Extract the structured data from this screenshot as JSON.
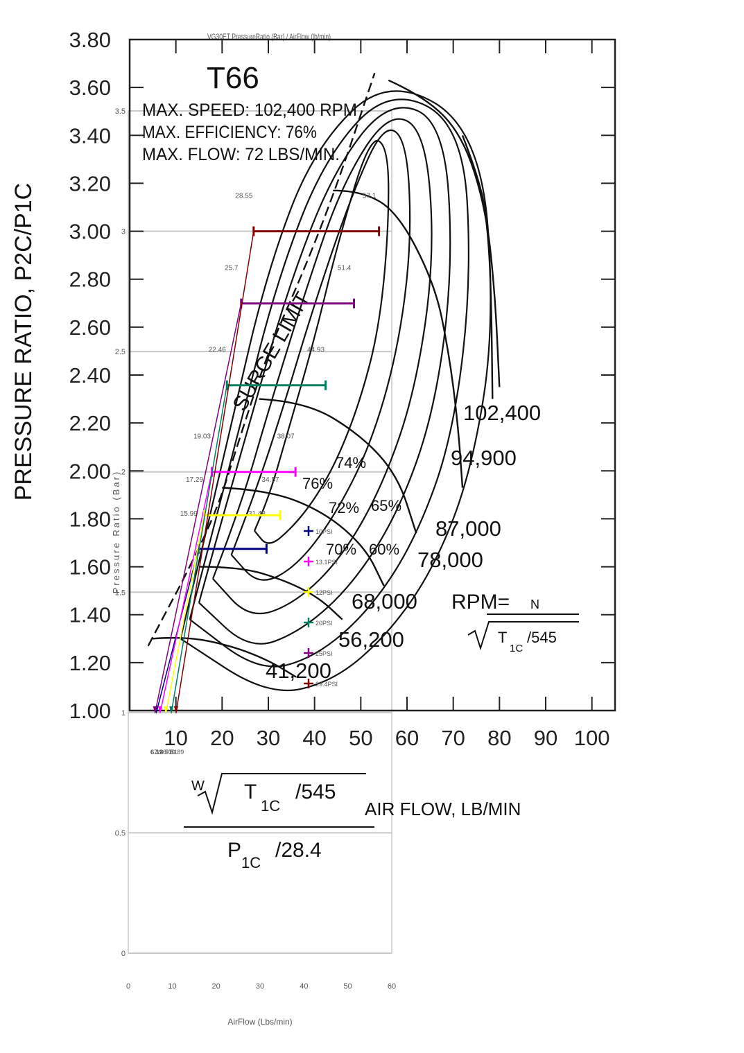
{
  "chart_data": {
    "type": "line",
    "base_map": {
      "model": "T66",
      "specs": [
        "MAX. SPEED: 102,400 RPM",
        "MAX. EFFICIENCY: 76%",
        "MAX. FLOW: 72 LBS/MIN."
      ],
      "ylabel": "PRESSURE RATIO, P2C/P1C",
      "xlabel": "AIR FLOW, LB/MIN",
      "xlabel_formula": {
        "w": "W",
        "t": "T",
        "t_sub": "1C",
        "t_div": "/545",
        "p": "P",
        "p_sub": "1C",
        "p_div": "/28.4"
      },
      "rpm_formula": {
        "prefix": "RPM=",
        "n": "N",
        "t": "T",
        "t_sub": "1C",
        "t_div": "/545"
      },
      "surge_label": "SURGE LIMIT",
      "x_range": [
        0,
        105
      ],
      "y_range": [
        1.0,
        3.8
      ],
      "x_ticks": [
        "10",
        "20",
        "30",
        "40",
        "50",
        "60",
        "70",
        "80",
        "90",
        "100"
      ],
      "x_tick_values": [
        10,
        20,
        30,
        40,
        50,
        60,
        70,
        80,
        90,
        100
      ],
      "y_ticks": [
        "1.00",
        "1.20",
        "1.40",
        "1.60",
        "1.80",
        "2.00",
        "2.20",
        "2.40",
        "2.60",
        "2.80",
        "3.00",
        "3.20",
        "3.40",
        "3.60",
        "3.80"
      ],
      "y_tick_values": [
        1.0,
        1.2,
        1.4,
        1.6,
        1.8,
        2.0,
        2.2,
        2.4,
        2.6,
        2.8,
        3.0,
        3.2,
        3.4,
        3.6,
        3.8
      ],
      "speed_lines": [
        {
          "label": "41,200",
          "points": [
            [
              5,
              1.3
            ],
            [
              12,
              1.31
            ],
            [
              22,
              1.27
            ],
            [
              30,
              1.21
            ],
            [
              36,
              1.14
            ]
          ]
        },
        {
          "label": "56,200",
          "points": [
            [
              15,
              1.6
            ],
            [
              24,
              1.6
            ],
            [
              34,
              1.54
            ],
            [
              41,
              1.47
            ],
            [
              46,
              1.38
            ]
          ]
        },
        {
          "label": "68,000 RPM",
          "points": [
            [
              20,
              1.93
            ],
            [
              30,
              1.92
            ],
            [
              42,
              1.83
            ],
            [
              51,
              1.68
            ],
            [
              55,
              1.52
            ]
          ]
        },
        {
          "label": "78,000",
          "points": [
            [
              28,
              2.3
            ],
            [
              38,
              2.29
            ],
            [
              50,
              2.15
            ],
            [
              58,
              1.98
            ],
            [
              62,
              1.74
            ]
          ]
        },
        {
          "label": "87,000",
          "points": [
            [
              44,
              3.17
            ],
            [
              50,
              3.17
            ],
            [
              58,
              3.08
            ],
            [
              66,
              2.78
            ],
            [
              69,
              2.5
            ],
            [
              71,
              2.2
            ],
            [
              72,
              1.93
            ]
          ]
        },
        {
          "label": "94,900",
          "points": [
            [
              56,
              3.63
            ],
            [
              64,
              3.56
            ],
            [
              72,
              3.4
            ],
            [
              77,
              3.1
            ],
            [
              79,
              2.75
            ],
            [
              80,
              2.35
            ]
          ]
        },
        {
          "label": "102,400",
          "points": [
            [
              72,
              3.4
            ],
            [
              76,
              3.2
            ],
            [
              77.5,
              3.0
            ],
            [
              78.2,
              2.75
            ],
            [
              78.5,
              2.3
            ]
          ]
        }
      ],
      "surge_line": [
        [
          4,
          1.27
        ],
        [
          7,
          1.38
        ],
        [
          12,
          1.56
        ],
        [
          19,
          1.84
        ],
        [
          24,
          2.15
        ],
        [
          30,
          2.5
        ],
        [
          38,
          2.85
        ],
        [
          45,
          3.2
        ],
        [
          53,
          3.66
        ]
      ],
      "efficiency_islands": [
        {
          "label": "76%",
          "points": [
            [
              27,
              1.75
            ],
            [
              30,
              1.88
            ],
            [
              34,
              2.15
            ],
            [
              40,
              2.55
            ],
            [
              45,
              2.95
            ],
            [
              52,
              3.4
            ],
            [
              56,
              3.35
            ],
            [
              56,
              3.0
            ],
            [
              54,
              2.6
            ],
            [
              50,
              2.3
            ],
            [
              45,
              2.05
            ],
            [
              40,
              1.88
            ],
            [
              35,
              1.76
            ],
            [
              30,
              1.68
            ],
            [
              27,
              1.75
            ]
          ]
        },
        {
          "label": "74%",
          "points": [
            [
              22,
              1.65
            ],
            [
              27,
              1.9
            ],
            [
              33,
              2.25
            ],
            [
              40,
              2.7
            ],
            [
              48,
              3.15
            ],
            [
              55,
              3.45
            ],
            [
              60,
              3.38
            ],
            [
              61,
              2.95
            ],
            [
              58,
              2.5
            ],
            [
              52,
              2.1
            ],
            [
              44,
              1.8
            ],
            [
              36,
              1.6
            ],
            [
              28,
              1.52
            ],
            [
              22,
              1.65
            ]
          ]
        },
        {
          "label": "72%",
          "points": [
            [
              18,
              1.55
            ],
            [
              24,
              1.85
            ],
            [
              30,
              2.25
            ],
            [
              38,
              2.75
            ],
            [
              46,
              3.2
            ],
            [
              56,
              3.5
            ],
            [
              64,
              3.42
            ],
            [
              66,
              2.9
            ],
            [
              62,
              2.35
            ],
            [
              55,
              1.95
            ],
            [
              46,
              1.64
            ],
            [
              36,
              1.45
            ],
            [
              26,
              1.38
            ],
            [
              18,
              1.55
            ]
          ]
        },
        {
          "label": "70%",
          "points": [
            [
              15,
              1.45
            ],
            [
              20,
              1.8
            ],
            [
              26,
              2.2
            ],
            [
              34,
              2.75
            ],
            [
              44,
              3.25
            ],
            [
              56,
              3.55
            ],
            [
              68,
              3.46
            ],
            [
              70,
              2.85
            ],
            [
              66,
              2.25
            ],
            [
              58,
              1.82
            ],
            [
              48,
              1.52
            ],
            [
              37,
              1.33
            ],
            [
              26,
              1.25
            ],
            [
              15,
              1.45
            ]
          ]
        },
        {
          "label": "65%",
          "points": [
            [
              13,
              1.38
            ],
            [
              18,
              1.75
            ],
            [
              24,
              2.2
            ],
            [
              32,
              2.8
            ],
            [
              42,
              3.3
            ],
            [
              56,
              3.6
            ],
            [
              72,
              3.45
            ],
            [
              74,
              2.8
            ],
            [
              70,
              2.15
            ],
            [
              62,
              1.72
            ],
            [
              52,
              1.42
            ],
            [
              40,
              1.22
            ],
            [
              28,
              1.16
            ],
            [
              13,
              1.38
            ]
          ]
        },
        {
          "label": "60%",
          "points": [
            [
              11,
              1.3
            ],
            [
              16,
              1.7
            ],
            [
              22,
              2.2
            ],
            [
              30,
              2.85
            ],
            [
              40,
              3.35
            ],
            [
              56,
              3.65
            ],
            [
              76,
              3.42
            ],
            [
              79,
              2.6
            ],
            [
              74,
              2.0
            ],
            [
              66,
              1.6
            ],
            [
              56,
              1.32
            ],
            [
              44,
              1.12
            ],
            [
              30,
              1.06
            ],
            [
              11,
              1.3
            ]
          ]
        }
      ]
    },
    "overlay": {
      "title": "VG30ET PressureRatio (Bar) / AirFlow (lb/min)",
      "ylabel": "Pressure Ratio (Bar)",
      "xlabel": "AirFlow (Lbs/min)",
      "x_range": [
        0,
        60
      ],
      "y_range": [
        0,
        3.5
      ],
      "x_ticks": [
        "0",
        "10",
        "20",
        "30",
        "40",
        "50",
        "60"
      ],
      "x_tick_values": [
        0,
        10,
        20,
        30,
        40,
        50,
        60
      ],
      "y_ticks": [
        "0",
        "0.5",
        "1",
        "1.5",
        "2",
        "2.5",
        "3",
        "3.5"
      ],
      "y_tick_values": [
        0,
        0.5,
        1,
        1.5,
        2,
        2.5,
        3,
        3.5
      ],
      "legend_position": "right",
      "series": [
        {
          "name": "10PSI",
          "color": "#000080",
          "pr": 1.68,
          "x_low": 15.99,
          "x_high": 31.48,
          "low_label": "15.99",
          "high_label": "31.48",
          "base_x": 6.39,
          "base_label": "6.39"
        },
        {
          "name": "13.1PSI",
          "color": "#ff00ff",
          "pr": 2.0,
          "x_low": 19.03,
          "x_high": 38.07,
          "low_label": "19.03",
          "high_label": "38.07",
          "base_x": 7.26,
          "base_label": "7.26"
        },
        {
          "name": "12PSI",
          "color": "#ffff00",
          "pr": 1.82,
          "x_low": 17.29,
          "x_high": 34.57,
          "low_label": "17.29",
          "high_label": "34.57",
          "base_x": 8.57,
          "base_label": "8.57"
        },
        {
          "name": "20PSI",
          "color": "#008060",
          "pr": 2.36,
          "x_low": 22.46,
          "x_high": 44.93,
          "low_label": "22.46",
          "high_label": "44.93",
          "base_x": 9.81,
          "base_label": "9.81"
        },
        {
          "name": "25PSI",
          "color": "#800080",
          "pr": 2.7,
          "x_low": 25.7,
          "x_high": 51.4,
          "low_label": "25.7",
          "high_label": "51.4",
          "base_x": 6.1,
          "base_label": "6.1"
        },
        {
          "name": "29.4PSI",
          "color": "#800000",
          "pr": 3.0,
          "x_low": 28.55,
          "x_high": 57.1,
          "low_label": "28.55",
          "high_label": "57.1",
          "base_x": 10.89,
          "base_label": "10.89"
        }
      ]
    }
  }
}
